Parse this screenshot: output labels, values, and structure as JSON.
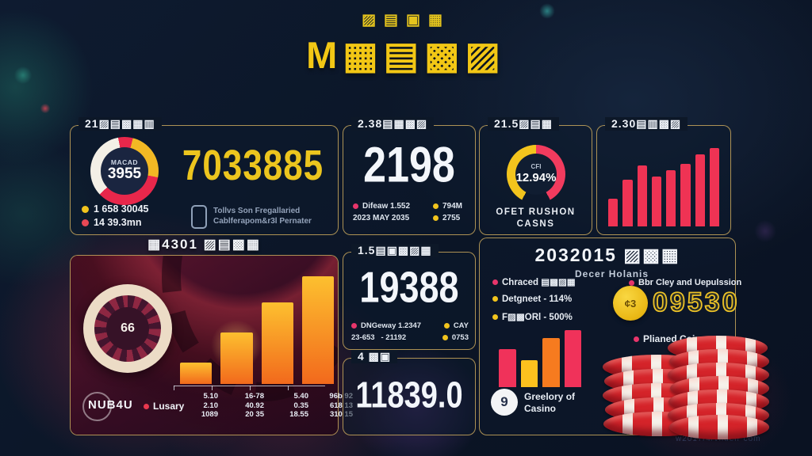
{
  "header": {
    "subtitle": "▨▤▣▦",
    "title": "M▦▤▩▨"
  },
  "p1": {
    "title": "21▨▤▩▦▥",
    "donut_label": "MACAD",
    "donut_value": "3955",
    "value": "7033885",
    "legend": [
      {
        "label": "1 658 30045",
        "color": "#f2c41d"
      },
      {
        "label": "14 39.3mn",
        "color": "#e84855"
      }
    ],
    "note_line1": "Tollvs Son Fregallaried",
    "note_line2": "Cablferapom&r3l Pernater"
  },
  "p2": {
    "title": "2.38▤▦▩▨",
    "value": "2198",
    "legend_left_1": "Difeaw 1.552",
    "legend_left_2": "2023 MAY 2035",
    "legend_right_1": "794M",
    "legend_right_2": "2755",
    "dot_left_color": "#e8356b",
    "dot_right_color": "#f2c41d"
  },
  "p3": {
    "title": "21.5▨▤▦",
    "gauge_label": "CFI",
    "gauge_value": "12.94%",
    "caption_1": "OFET RUSHON",
    "caption_2": "CASNS"
  },
  "p4": {
    "title": "2.30▤▥▩▨"
  },
  "lb": {
    "title": "▦4301 ▨▤▩▦",
    "wheel_value": "66",
    "logo": "NUB4U",
    "series_label": "Lusary",
    "series_dot_color": "#e8384e",
    "table": [
      [
        "5.10",
        "2.10",
        "1089"
      ],
      [
        "16-78",
        "40.92",
        "20 35"
      ],
      [
        "5.40",
        "0.35",
        "18.55"
      ],
      [
        "96b 92",
        "618 13",
        "310 15"
      ]
    ]
  },
  "mb1": {
    "title": "1.5▤▣▩▨▦",
    "value": "19388",
    "legend_a1": "DNGeway 1.2347",
    "legend_a2": "23-653   - 21192",
    "legend_b1": "CAY",
    "legend_b2": "0753",
    "dot_a_color": "#e8356b",
    "dot_b_color": "#f2c41d"
  },
  "mb2": {
    "title": "4 ▩▣",
    "value": "11839.0"
  },
  "rb": {
    "title": "2032015 ▨▩▦",
    "subtitle": "Decer Holanis",
    "legend": [
      {
        "label": "Chraced ▤▩▨▦",
        "color": "#e8356b"
      },
      {
        "label": "Detgneet - 114%",
        "color": "#f2c41d"
      },
      {
        "label": "F▨▩ORl - 500%",
        "color": "#f2c41d"
      }
    ],
    "right_item_1": "Bbr Cley and Uepulssion",
    "right_item_1_color": "#e8356b",
    "coin_label": "¢3",
    "coin_value": "09530",
    "right_item_2": "Plianed Coing",
    "right_item_2_color": "#e8356b",
    "footer_badge": "9",
    "footer_label_1": "Greelory of",
    "footer_label_2": "Casino"
  },
  "watermark": "w2017/4/vnuelr com",
  "chart_data": [
    {
      "id": "macau-donut",
      "type": "pie",
      "center_label": "MACAD",
      "center_value": "3955",
      "segments": [
        {
          "color": "#e8274b",
          "value": 4
        },
        {
          "color": "#f2b824",
          "value": 24
        },
        {
          "color": "#e8274b",
          "value": 35
        },
        {
          "color": "#f3efe6",
          "value": 34
        },
        {
          "color": "#e8274b",
          "value": 3
        }
      ]
    },
    {
      "id": "ofet-gauge",
      "type": "pie",
      "center_value": "12.94%",
      "segments": [
        {
          "color": "#f23b5e",
          "value": 42
        },
        {
          "color": "rgba(0,0,0,0)",
          "value": 16
        },
        {
          "color": "#f2c41d",
          "value": 42
        }
      ]
    },
    {
      "id": "red-bars",
      "type": "bar",
      "values": [
        35,
        60,
        78,
        64,
        72,
        80,
        92,
        100
      ],
      "color": "#ef3354"
    },
    {
      "id": "orange-bars",
      "type": "bar",
      "values": [
        20,
        48,
        76,
        100
      ],
      "gradient": [
        "#fdc02f",
        "#f2691c"
      ]
    },
    {
      "id": "mini-bars",
      "type": "bar",
      "values": [
        67,
        47,
        86,
        100
      ],
      "colors": [
        "#f0325a",
        "#fcc11e",
        "#f67b1f",
        "#f0325a"
      ]
    }
  ]
}
